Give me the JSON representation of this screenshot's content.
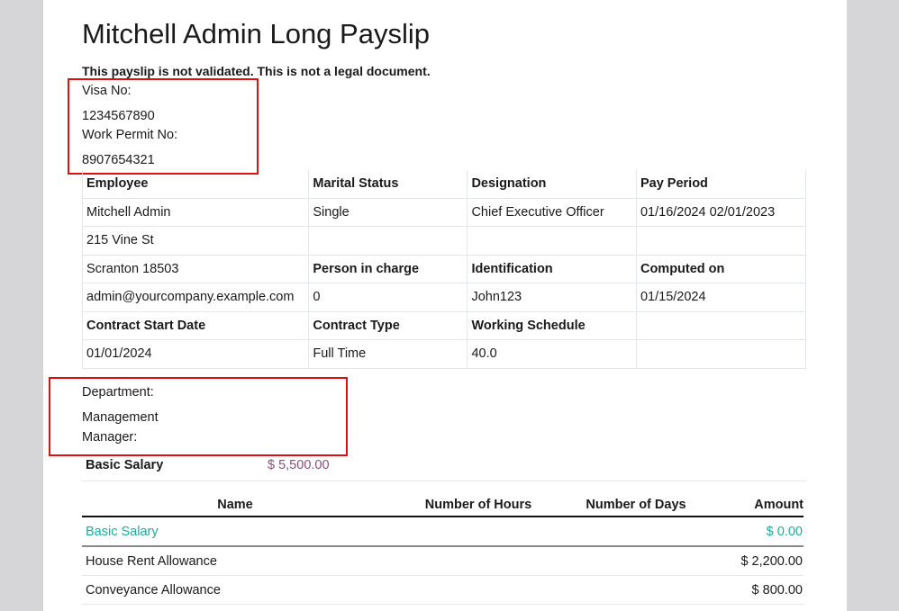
{
  "title": "Mitchell Admin Long Payslip",
  "warning": "This payslip is not validated. This is not a legal document.",
  "visa": {
    "label": "Visa No:",
    "value": "1234567890"
  },
  "work_permit": {
    "label": "Work Permit No:",
    "value": "8907654321"
  },
  "info_table": [
    [
      {
        "t": "Employee",
        "b": true
      },
      {
        "t": "Marital Status",
        "b": true
      },
      {
        "t": "Designation",
        "b": true
      },
      {
        "t": "Pay Period",
        "b": true
      }
    ],
    [
      {
        "t": "Mitchell Admin"
      },
      {
        "t": "Single"
      },
      {
        "t": "Chief Executive Officer"
      },
      {
        "t": "01/16/2024 02/01/2023"
      }
    ],
    [
      {
        "t": "215 Vine St"
      },
      {
        "t": ""
      },
      {
        "t": ""
      },
      {
        "t": ""
      }
    ],
    [
      {
        "t": "Scranton 18503"
      },
      {
        "t": "Person in charge",
        "b": true
      },
      {
        "t": "Identification",
        "b": true
      },
      {
        "t": "Computed on",
        "b": true
      }
    ],
    [
      {
        "t": "admin@yourcompany.example.com"
      },
      {
        "t": "0"
      },
      {
        "t": "John123"
      },
      {
        "t": "01/15/2024"
      }
    ],
    [
      {
        "t": "Contract Start Date",
        "b": true
      },
      {
        "t": "Contract Type",
        "b": true
      },
      {
        "t": "Working Schedule",
        "b": true
      },
      {
        "t": ""
      }
    ],
    [
      {
        "t": "01/01/2024"
      },
      {
        "t": "Full Time"
      },
      {
        "t": "40.0"
      },
      {
        "t": ""
      }
    ]
  ],
  "department": {
    "label": "Department:",
    "value": "Management"
  },
  "manager": {
    "label": "Manager:"
  },
  "basic_salary": {
    "label": "Basic Salary",
    "value": "$ 5,500.00"
  },
  "lines": {
    "headers": [
      "Name",
      "Number of Hours",
      "Number of Days",
      "Amount"
    ],
    "rows": [
      {
        "name": "Basic Salary",
        "hours": "",
        "days": "",
        "amount": "$ 0.00"
      },
      {
        "name": "House Rent Allowance",
        "hours": "",
        "days": "",
        "amount": "$ 2,200.00"
      },
      {
        "name": "Conveyance Allowance",
        "hours": "",
        "days": "",
        "amount": "$ 800.00"
      }
    ]
  },
  "colors": {
    "highlight_box": "#e01010",
    "basic_line": "#1aaf9c",
    "salary_value": "#8a4e7c"
  }
}
